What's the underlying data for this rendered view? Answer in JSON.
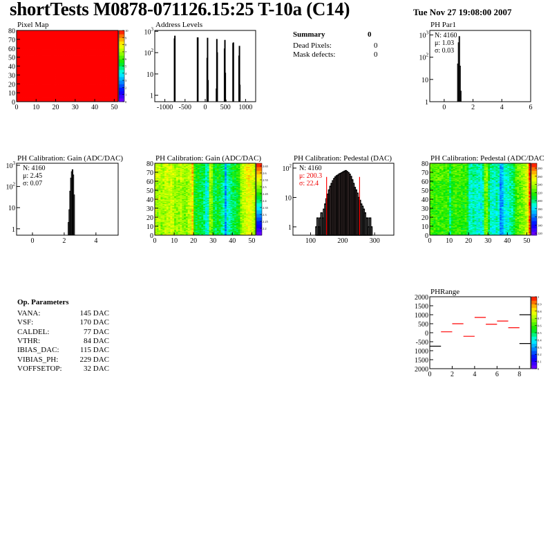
{
  "header": {
    "title": "shortTests M0878-071126.15:25 T-10a (C14)",
    "date": "Tue Nov 27 19:08:00 2007"
  },
  "summary": {
    "title": "Summary",
    "total": "0",
    "rows": [
      {
        "label": "Dead Pixels:",
        "value": "0"
      },
      {
        "label": "Mask defects:",
        "value": "0"
      }
    ]
  },
  "op_parameters": {
    "title": "Op. Parameters",
    "rows": [
      {
        "label": "VANA:",
        "value": "145 DAC"
      },
      {
        "label": "VSF:",
        "value": "170 DAC"
      },
      {
        "label": "CALDEL:",
        "value": "77 DAC"
      },
      {
        "label": "VTHR:",
        "value": "84 DAC"
      },
      {
        "label": "IBIAS_DAC:",
        "value": "115 DAC"
      },
      {
        "label": "VIBIAS_PH:",
        "value": "229 DAC"
      },
      {
        "label": "VOFFSETOP:",
        "value": "32 DAC"
      }
    ]
  },
  "chart_data": [
    {
      "id": "pixelmap",
      "type": "heatmap",
      "title": "Pixel Map",
      "xlim": [
        0,
        52
      ],
      "ylim": [
        0,
        80
      ],
      "zlim": [
        0,
        10
      ],
      "xticks": [
        "0",
        "10",
        "20",
        "30",
        "40",
        "50"
      ],
      "yticks": [
        "0",
        "10",
        "20",
        "30",
        "40",
        "50",
        "60",
        "70",
        "80"
      ],
      "zticks": [
        "0",
        "1",
        "2",
        "3",
        "4",
        "5",
        "6",
        "7",
        "8",
        "9",
        "10"
      ],
      "uniform_value": 10
    },
    {
      "id": "address",
      "type": "bar",
      "title": "Address Levels",
      "xlim": [
        -1250,
        1250
      ],
      "ylim": [
        0.5,
        1100
      ],
      "log_y": true,
      "xticks": [
        "-1000",
        "-500",
        "0",
        "500",
        "1000"
      ],
      "yticks": [
        "1",
        "10",
        "10^2",
        "10^3"
      ],
      "bins": [
        [
          -770,
          450
        ],
        [
          -760,
          600
        ],
        [
          -200,
          500
        ],
        [
          -190,
          500
        ],
        [
          40,
          55
        ],
        [
          50,
          480
        ],
        [
          60,
          5
        ],
        [
          270,
          2
        ],
        [
          280,
          420
        ],
        [
          290,
          100
        ],
        [
          470,
          150
        ],
        [
          480,
          380
        ],
        [
          490,
          11
        ],
        [
          500,
          0.6
        ],
        [
          680,
          270
        ],
        [
          690,
          290
        ],
        [
          830,
          70
        ],
        [
          840,
          200
        ],
        [
          850,
          3
        ]
      ]
    },
    {
      "id": "phpar1",
      "type": "bar",
      "title": "PH Par1",
      "xlim": [
        -1,
        6
      ],
      "ylim": [
        1,
        1600
      ],
      "log_y": true,
      "xticks": [
        "0",
        "2",
        "4",
        "6"
      ],
      "yticks": [
        "1",
        "10",
        "10^2",
        "10^3"
      ],
      "stats": {
        "n": "N: 4160",
        "mean": "μ: 1.03",
        "sigma": "σ: 0.03"
      },
      "bins": [
        [
          0.925,
          50
        ],
        [
          0.975,
          450
        ],
        [
          1.025,
          850
        ],
        [
          1.075,
          40
        ],
        [
          1.125,
          3
        ]
      ],
      "bin_width": 0.05
    },
    {
      "id": "gainhist",
      "type": "bar",
      "title": "PH Calibration: Gain (ADC/DAC)",
      "xlim": [
        -1,
        5.4
      ],
      "ylim": [
        0.5,
        1250
      ],
      "log_y": true,
      "xticks": [
        "0",
        "2",
        "4"
      ],
      "yticks": [
        "1",
        "10",
        "10^2",
        "10^3"
      ],
      "stats": {
        "n": "N: 4160",
        "mean": "μ: 2.45",
        "sigma": "σ: 0.07"
      },
      "bins": [
        [
          2.2,
          0.5
        ],
        [
          2.25,
          2
        ],
        [
          2.3,
          8
        ],
        [
          2.35,
          60
        ],
        [
          2.4,
          250
        ],
        [
          2.45,
          500
        ],
        [
          2.5,
          620
        ],
        [
          2.55,
          350
        ],
        [
          2.6,
          40
        ],
        [
          2.65,
          0.5
        ]
      ],
      "bin_width": 0.05
    },
    {
      "id": "gainmap",
      "type": "heatmap",
      "title": "PH Calibration: Gain (ADC/DAC)",
      "xlim": [
        0,
        52
      ],
      "ylim": [
        0,
        80
      ],
      "zlim": [
        2.15,
        2.67
      ],
      "xticks": [
        "0",
        "10",
        "20",
        "30",
        "40",
        "50"
      ],
      "yticks": [
        "0",
        "10",
        "20",
        "30",
        "40",
        "50",
        "60",
        "70",
        "80"
      ],
      "zticks": [
        "2.2",
        "2.25",
        "2.3",
        "2.35",
        "2.4",
        "2.45",
        "2.5",
        "2.55",
        "2.6",
        "2.65"
      ],
      "column_means": [
        2.52,
        2.51,
        2.52,
        2.5,
        2.51,
        2.52,
        2.53,
        2.52,
        2.54,
        2.52,
        2.5,
        2.51,
        2.5,
        2.52,
        2.5,
        2.49,
        2.5,
        2.52,
        2.53,
        2.58,
        2.44,
        2.42,
        2.43,
        2.41,
        2.42,
        2.4,
        2.36,
        2.38,
        2.5,
        2.48,
        2.42,
        2.41,
        2.43,
        2.42,
        2.4,
        2.39,
        2.3,
        2.37,
        2.38,
        2.4,
        2.42,
        2.41,
        2.43,
        2.44,
        2.5,
        2.52,
        2.53,
        2.55,
        2.56,
        2.55,
        2.54,
        2.52
      ]
    },
    {
      "id": "pedhist",
      "type": "bar",
      "title": "PH Calibration: Pedestal (DAC)",
      "xlim": [
        45,
        360
      ],
      "ylim": [
        0.52,
        146
      ],
      "log_y": true,
      "xticks": [
        "100",
        "200",
        "300"
      ],
      "yticks": [
        "1",
        "10",
        "10^2"
      ],
      "stats": {
        "n": "N: 4160",
        "mean": "μ: 200.3",
        "sigma": "σ: 22.4"
      },
      "fit_range": [
        150,
        253
      ],
      "bin_width": 4,
      "bins": [
        [
          116,
          1
        ],
        [
          120,
          2
        ],
        [
          124,
          1
        ],
        [
          128,
          2
        ],
        [
          132,
          3
        ],
        [
          136,
          2
        ],
        [
          140,
          4
        ],
        [
          144,
          6
        ],
        [
          148,
          9
        ],
        [
          152,
          13
        ],
        [
          156,
          18
        ],
        [
          160,
          24
        ],
        [
          164,
          30
        ],
        [
          168,
          37
        ],
        [
          172,
          44
        ],
        [
          176,
          50
        ],
        [
          180,
          55
        ],
        [
          184,
          58
        ],
        [
          188,
          63
        ],
        [
          192,
          66
        ],
        [
          196,
          70
        ],
        [
          200,
          74
        ],
        [
          204,
          78
        ],
        [
          208,
          82
        ],
        [
          212,
          76
        ],
        [
          216,
          70
        ],
        [
          220,
          62
        ],
        [
          224,
          52
        ],
        [
          228,
          40
        ],
        [
          232,
          30
        ],
        [
          236,
          22
        ],
        [
          240,
          18
        ],
        [
          244,
          14
        ],
        [
          248,
          10
        ],
        [
          252,
          8
        ],
        [
          256,
          6
        ],
        [
          260,
          5
        ],
        [
          264,
          4
        ],
        [
          268,
          3
        ],
        [
          272,
          2
        ],
        [
          276,
          2
        ],
        [
          280,
          1
        ],
        [
          284,
          2
        ],
        [
          288,
          1
        ]
      ]
    },
    {
      "id": "pedmap",
      "type": "heatmap",
      "title": "PH Calibration: Pedestal (ADC/DAC",
      "xlim": [
        0,
        52
      ],
      "ylim": [
        0,
        80
      ],
      "zlim": [
        115,
        292
      ],
      "xticks": [
        "0",
        "10",
        "20",
        "30",
        "40",
        "50"
      ],
      "yticks": [
        "0",
        "10",
        "20",
        "30",
        "40",
        "50",
        "60",
        "70",
        "80"
      ],
      "zticks": [
        "120",
        "140",
        "160",
        "180",
        "200",
        "220",
        "240",
        "260",
        "280"
      ],
      "column_means": [
        222,
        220,
        218,
        221,
        219,
        220,
        222,
        218,
        220,
        219,
        200,
        215,
        218,
        220,
        217,
        219,
        218,
        216,
        220,
        210,
        192,
        190,
        195,
        193,
        188,
        191,
        185,
        196,
        226,
        230,
        205,
        192,
        190,
        188,
        195,
        190,
        165,
        170,
        185,
        190,
        188,
        194,
        196,
        205,
        220,
        225,
        228,
        230,
        235,
        240,
        250,
        285
      ]
    },
    {
      "id": "phrange",
      "type": "heatmap",
      "title": "PHRange",
      "xlim": [
        0,
        9
      ],
      "ylim": [
        -2000,
        2000
      ],
      "zlim": [
        0,
        1
      ],
      "xticks": [
        "0",
        "2",
        "4",
        "6",
        "8"
      ],
      "yticks": [
        "2000",
        "1500",
        "1000",
        "500",
        "0",
        "-500",
        "1000",
        "1500",
        "2000"
      ],
      "zticks": [
        "0",
        "0.1",
        "0.2",
        "0.3",
        "0.4",
        "0.5",
        "0.6",
        "0.7",
        "0.8",
        "0.9",
        "1"
      ],
      "segments": [
        [
          0,
          -750
        ],
        [
          1,
          50
        ],
        [
          2,
          500
        ],
        [
          3,
          -200
        ],
        [
          4,
          850
        ],
        [
          5,
          470
        ],
        [
          6,
          650
        ],
        [
          7,
          280
        ],
        [
          8,
          1000
        ],
        [
          8,
          -600
        ]
      ]
    }
  ]
}
